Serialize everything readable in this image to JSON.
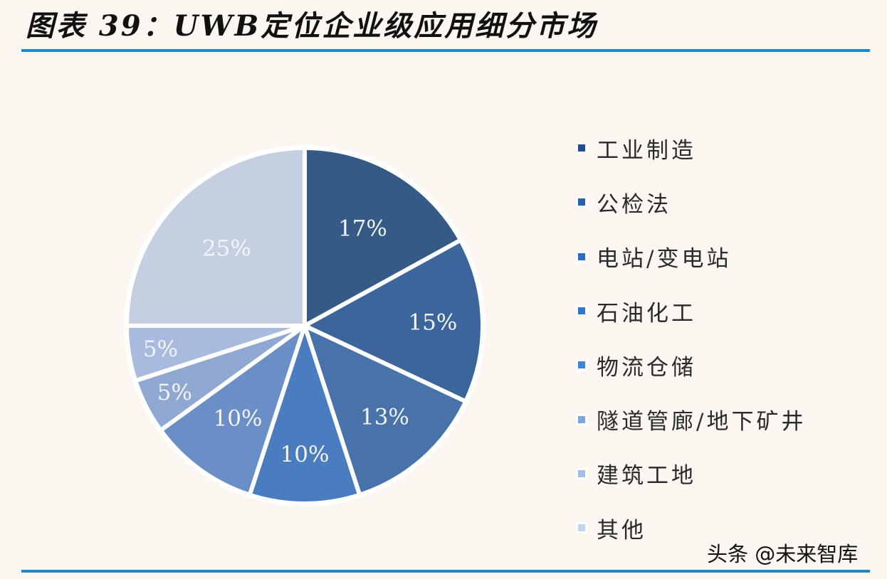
{
  "title": "图表 39：UWB定位企业级应用细分市场",
  "watermark": "头条 @未来智库",
  "colors": {
    "rule": "#1e88c8",
    "background": "#fbf6f0"
  },
  "chart_data": {
    "type": "pie",
    "title": "图表 39：UWB定位企业级应用细分市场",
    "start_angle_deg": 0,
    "direction": "clockwise",
    "legend_position": "right",
    "categories": [
      "工业制造",
      "公检法",
      "电站/变电站",
      "石油化工",
      "物流仓储",
      "隧道管廊/地下矿井",
      "建筑工地",
      "其他"
    ],
    "values": [
      17,
      15,
      13,
      10,
      10,
      5,
      5,
      25
    ],
    "labels": [
      "17%",
      "15%",
      "13%",
      "10%",
      "10%",
      "5%",
      "5%",
      "25%"
    ],
    "colors": [
      "#355a86",
      "#3c659b",
      "#4772aa",
      "#4a7cc0",
      "#6a8fc6",
      "#8fa8d2",
      "#a8bbde",
      "#c5cfe2"
    ],
    "unit": "%"
  },
  "legend": {
    "items": [
      {
        "label": "工业制造",
        "color": "#1f4f94"
      },
      {
        "label": "公检法",
        "color": "#2660b0"
      },
      {
        "label": "电站/变电站",
        "color": "#2a6cc6"
      },
      {
        "label": "石油化工",
        "color": "#2f76d2"
      },
      {
        "label": "物流仓储",
        "color": "#3f86d8"
      },
      {
        "label": "隧道管廊/地下矿井",
        "color": "#7aa6e0"
      },
      {
        "label": "建筑工地",
        "color": "#a2bee8"
      },
      {
        "label": "其他",
        "color": "#c2d3ee"
      }
    ]
  }
}
